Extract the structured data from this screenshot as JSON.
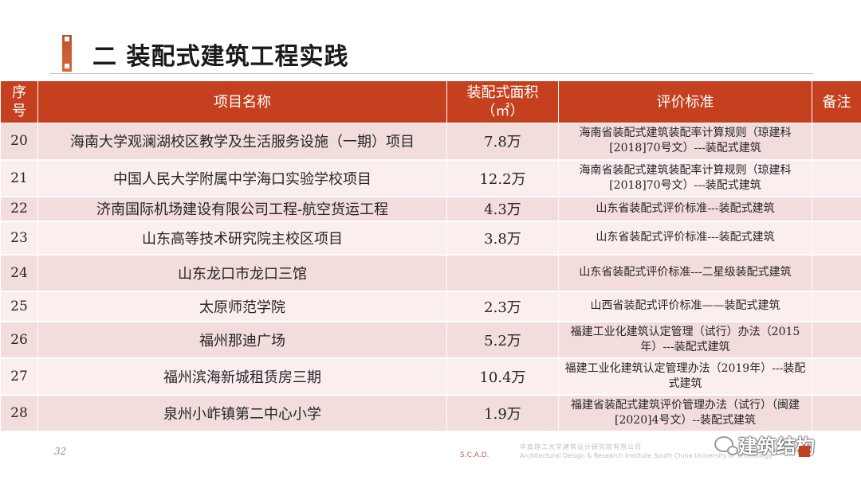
{
  "slide": {
    "title": "二  装配式建筑工程实践",
    "page_number": "32",
    "footer_brand": "S.C.A.D.",
    "footer_company_cn": "华南理工大学建筑设计研究院有限公司",
    "footer_company_en": "Architectural Design & Research Institute South China University of Technology",
    "watermark_text": "建筑结构",
    "accent_color": "#c4401e"
  },
  "table": {
    "headers": [
      "序号",
      "项目名称",
      "装配式面积（㎡）",
      "评价标准",
      "备注"
    ],
    "rows": [
      {
        "no": "20",
        "name": "海南大学观澜湖校区教学及生活服务设施（一期）项目",
        "area": "7.8万",
        "standard": "海南省装配式建筑装配率计算规则（琼建科[2018]70号文）---装配式建筑",
        "note": ""
      },
      {
        "no": "21",
        "name": "中国人民大学附属中学海口实验学校项目",
        "area": "12.2万",
        "standard": "海南省装配式建筑装配率计算规则（琼建科[2018]70号文）---装配式建筑",
        "note": ""
      },
      {
        "no": "22",
        "name": "济南国际机场建设有限公司工程-航空货运工程",
        "area": "4.3万",
        "standard": "山东省装配式评价标准---装配式建筑",
        "note": ""
      },
      {
        "no": "23",
        "name": "山东高等技术研究院主校区项目",
        "area": "3.8万",
        "standard": "山东省装配式评价标准---装配式建筑",
        "note": ""
      },
      {
        "no": "24",
        "name": "山东龙口市龙口三馆",
        "area": "",
        "standard": "山东省装配式评价标准---二星级装配式建筑",
        "note": ""
      },
      {
        "no": "25",
        "name": "太原师范学院",
        "area": "2.3万",
        "standard": "山西省装配式评价标准——装配式建筑",
        "note": ""
      },
      {
        "no": "26",
        "name": "福州那迪广场",
        "area": "5.2万",
        "standard": "福建工业化建筑认定管理（试行）办法（2015年）---装配式建筑",
        "note": ""
      },
      {
        "no": "27",
        "name": "福州滨海新城租赁房三期",
        "area": "10.4万",
        "standard": "福建工业化建筑认定管理办法（2019年）---装配式建筑",
        "note": ""
      },
      {
        "no": "28",
        "name": "泉州小岞镇第二中心小学",
        "area": "1.9万",
        "standard": "福建省装配式建筑评价管理办法（试行）（闽建[2020]4号文）--装配式建筑",
        "note": ""
      }
    ]
  }
}
